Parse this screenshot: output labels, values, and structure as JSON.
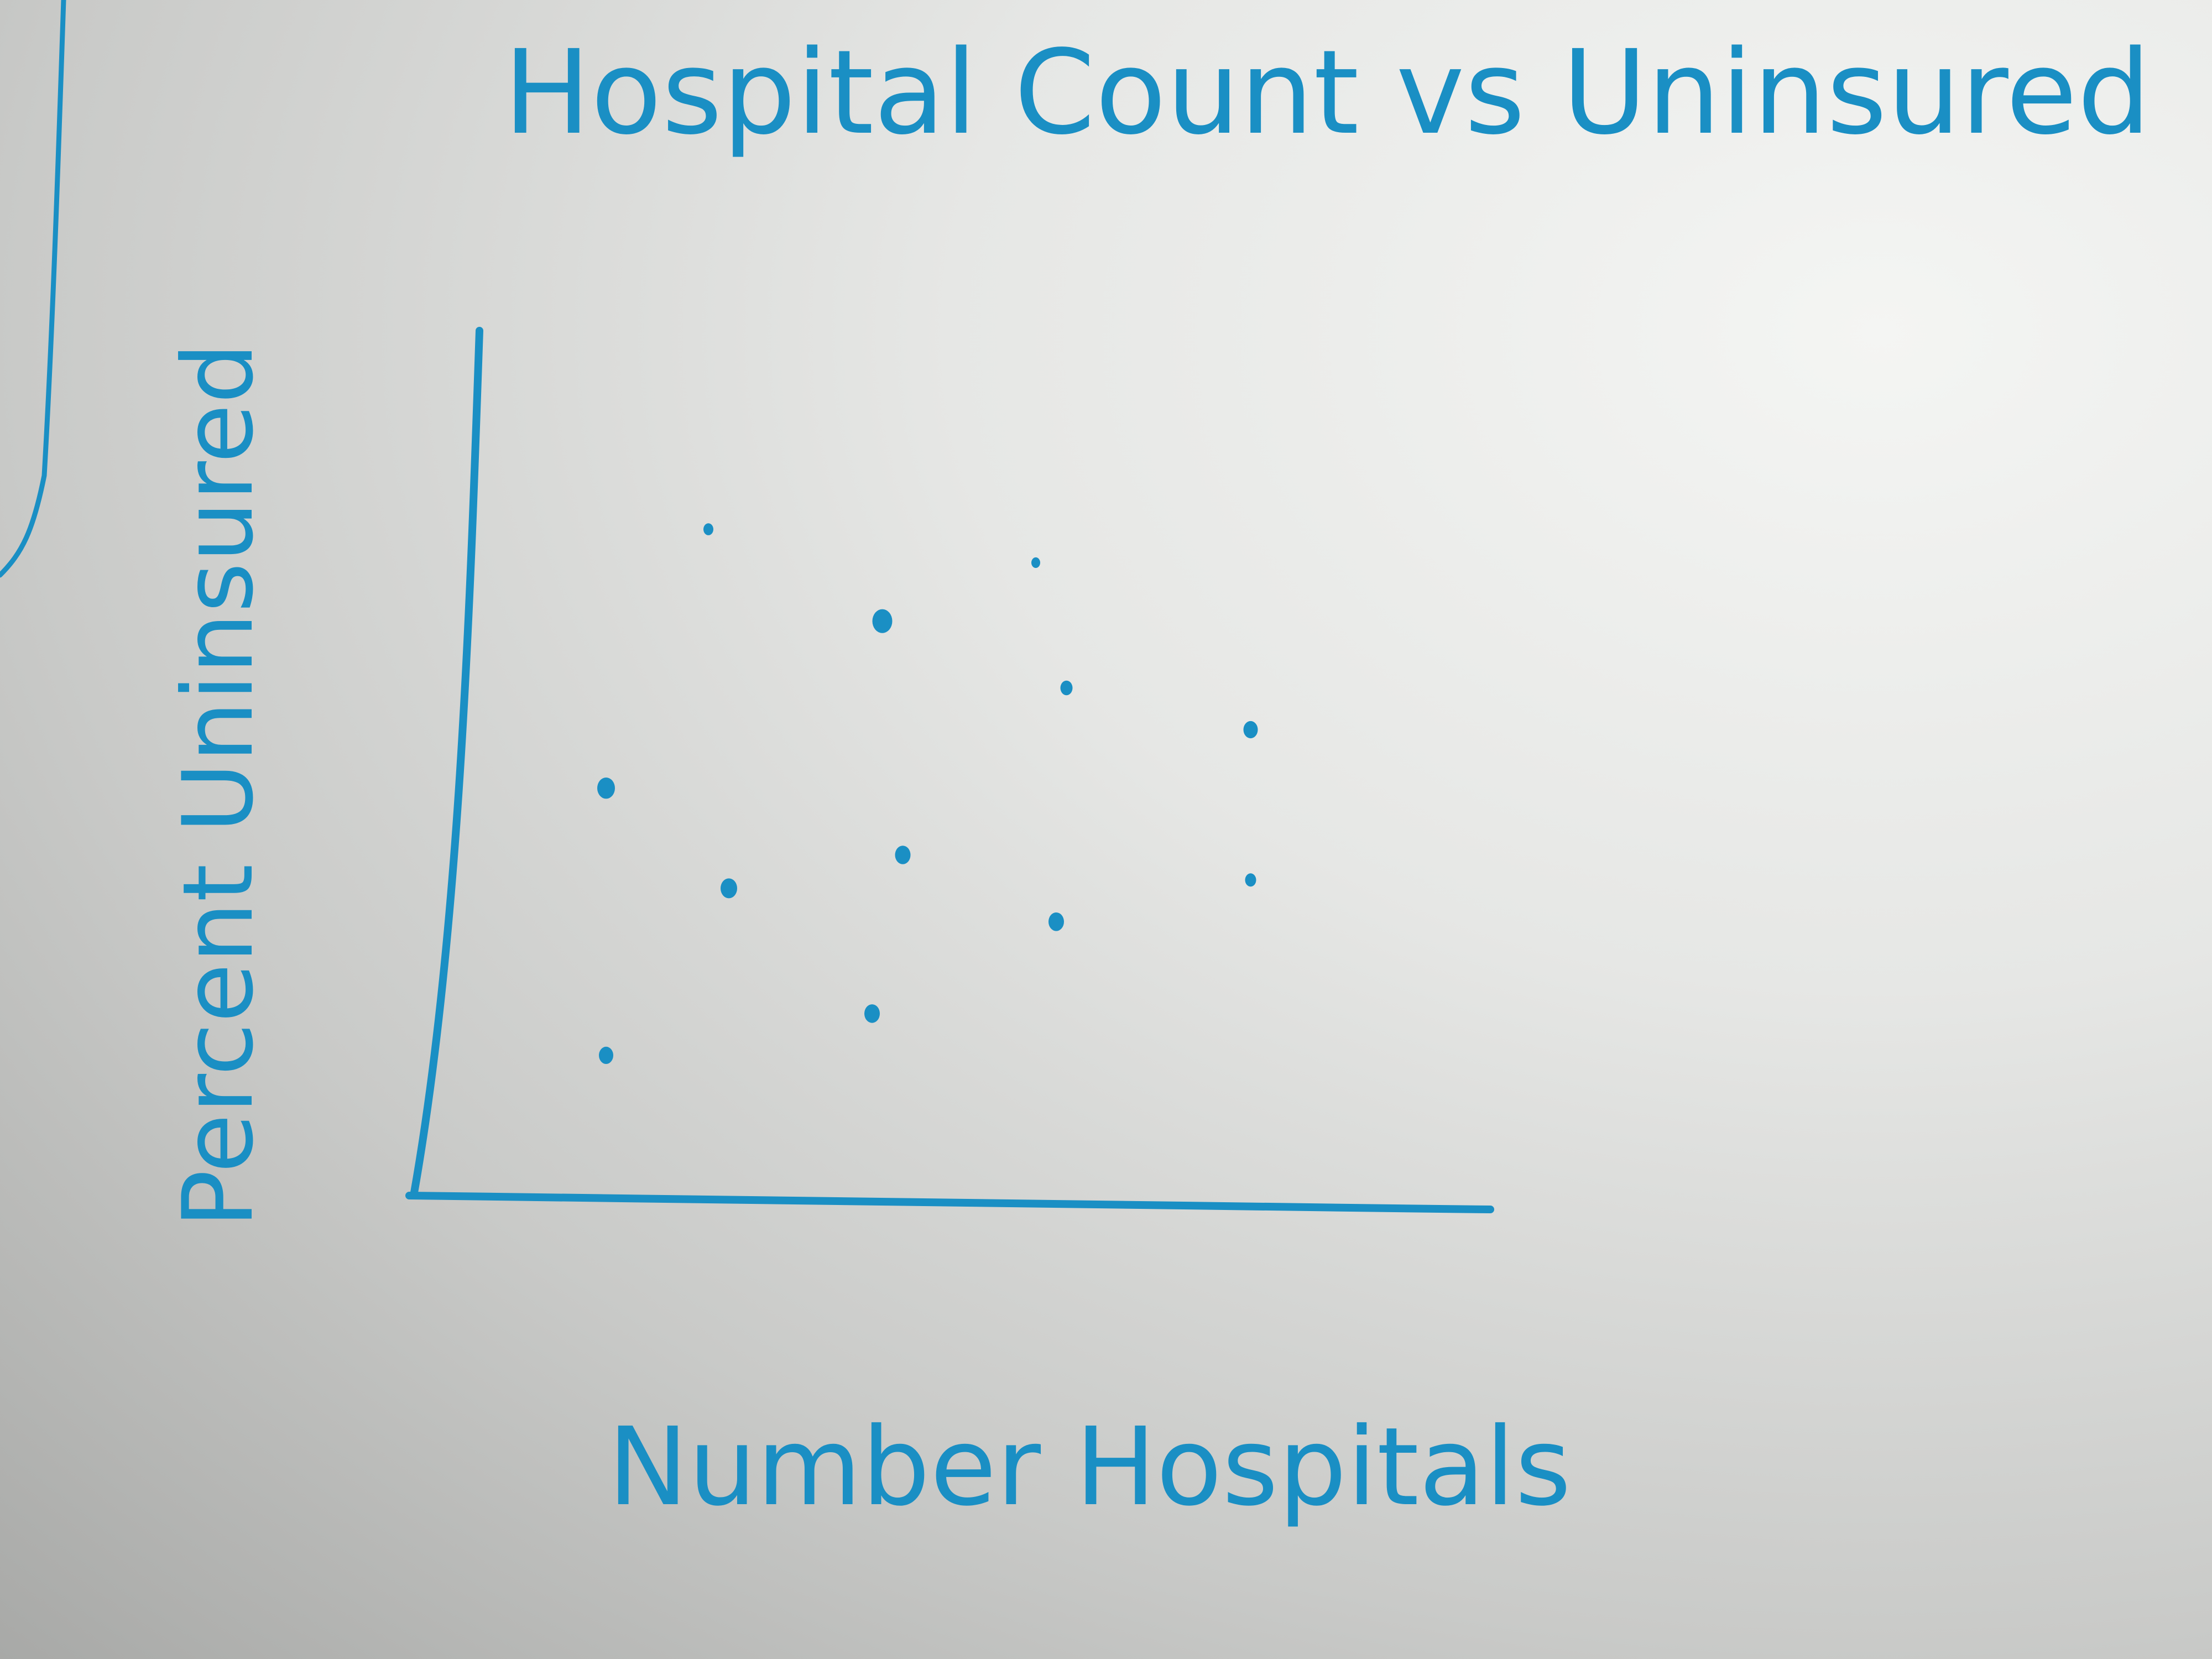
{
  "colors": {
    "ink": "#1a8fc4",
    "paper": "#eeeeec"
  },
  "chart_data": {
    "type": "scatter",
    "title": "Hospital Count vs Uninsured",
    "xlabel": "Number Hospitals",
    "ylabel": "Percent Uninsured",
    "xlim": [
      0,
      10
    ],
    "ylim": [
      0,
      10
    ],
    "grid": false,
    "legend": "none",
    "x_ticks": [],
    "y_ticks": [],
    "points": [
      {
        "x": 2.6,
        "y": 7.9
      },
      {
        "x": 4.3,
        "y": 6.8
      },
      {
        "x": 5.8,
        "y": 7.5
      },
      {
        "x": 6.1,
        "y": 6.0
      },
      {
        "x": 7.9,
        "y": 5.5
      },
      {
        "x": 1.6,
        "y": 4.8
      },
      {
        "x": 4.5,
        "y": 4.0
      },
      {
        "x": 2.8,
        "y": 3.6
      },
      {
        "x": 6.0,
        "y": 3.2
      },
      {
        "x": 7.9,
        "y": 3.7
      },
      {
        "x": 4.2,
        "y": 2.1
      },
      {
        "x": 1.6,
        "y": 1.6
      }
    ]
  }
}
